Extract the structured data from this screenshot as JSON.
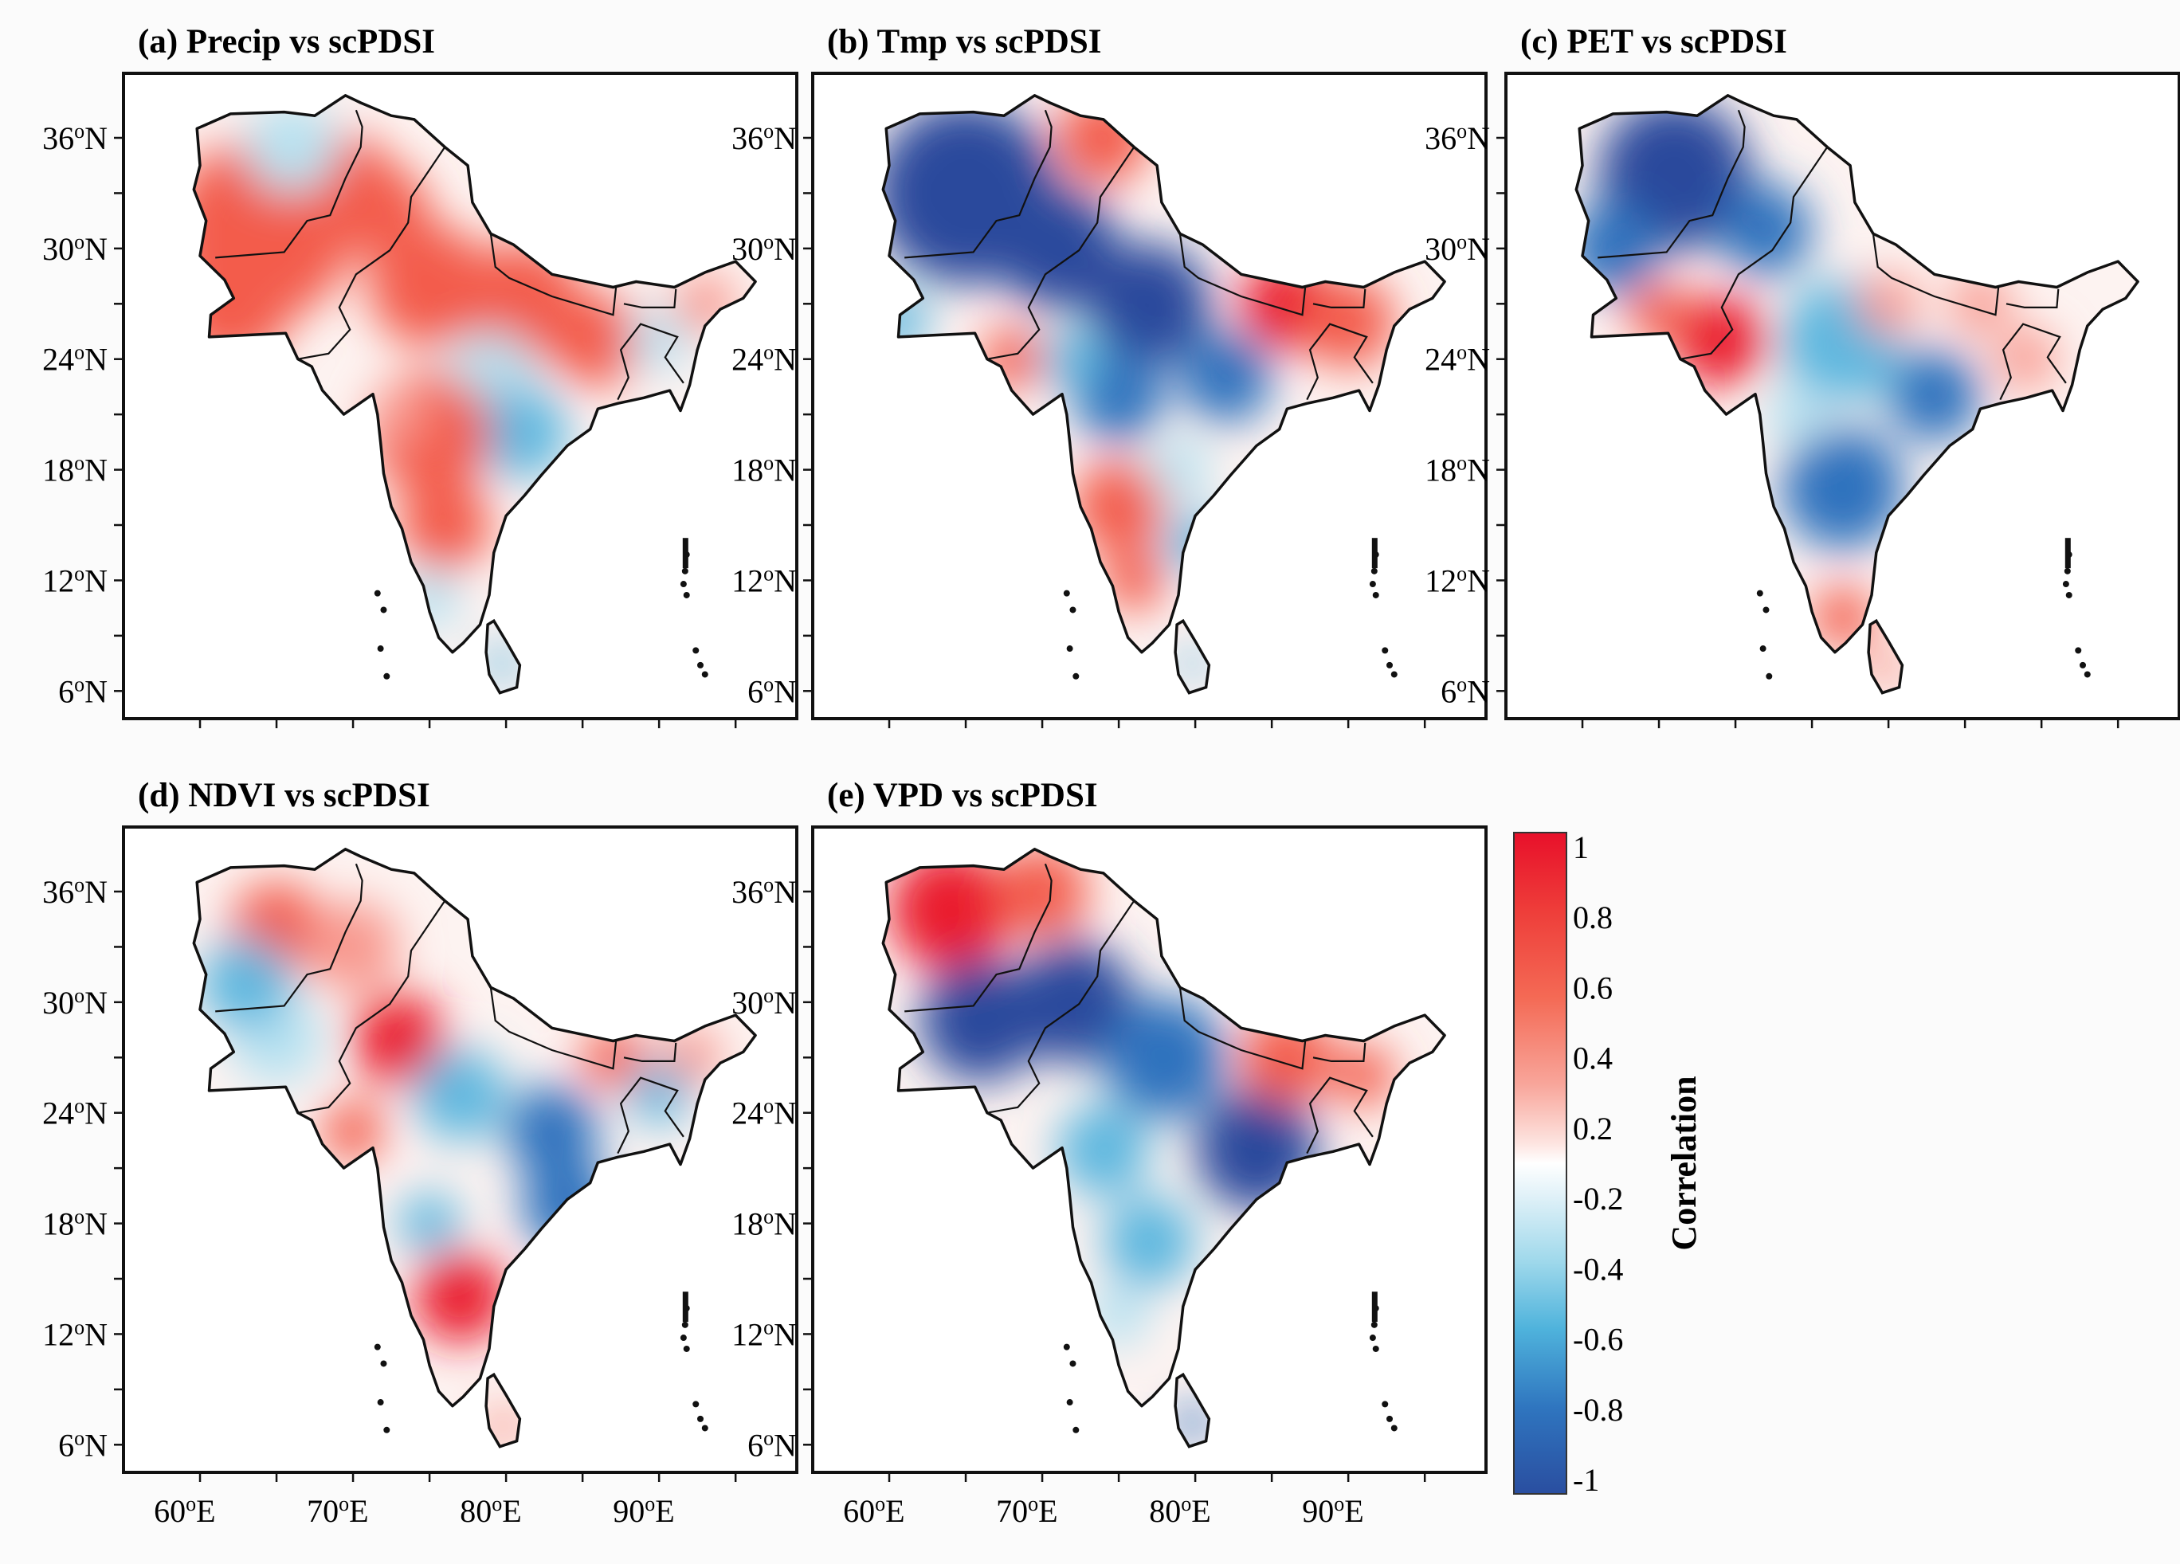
{
  "figure": {
    "panels": [
      {
        "id": "a",
        "title": "(a) Precip vs scPDSI",
        "pattern": "precip"
      },
      {
        "id": "b",
        "title": "(b) Tmp vs scPDSI",
        "pattern": "tmp"
      },
      {
        "id": "c",
        "title": "(c) PET vs scPDSI",
        "pattern": "pet"
      },
      {
        "id": "d",
        "title": "(d) NDVI vs scPDSI",
        "pattern": "ndvi"
      },
      {
        "id": "e",
        "title": "(e) VPD vs scPDSI",
        "pattern": "vpd"
      }
    ],
    "lat_labels": [
      "36",
      "30",
      "24",
      "18",
      "12",
      "6"
    ],
    "lat_suffix": "N",
    "lon_labels": [
      "60",
      "70",
      "80",
      "90"
    ],
    "lon_suffix": "E",
    "degree_mark": "o",
    "colorbar": {
      "title": "Correlation",
      "ticks": [
        "1",
        "0.8",
        "0.6",
        "0.4",
        "0.2",
        "-0.2",
        "-0.4",
        "-0.6",
        "-0.8",
        "-1"
      ],
      "range": [
        -1,
        1
      ],
      "colors": {
        "max": "#e8102a",
        "mid": "#ffffff",
        "min": "#2a4ea0"
      }
    }
  }
}
